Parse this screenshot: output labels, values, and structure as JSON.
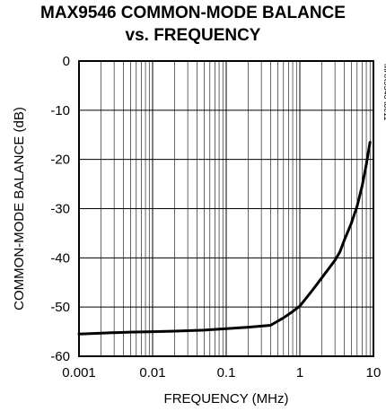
{
  "chart_data": {
    "type": "line",
    "title_lines": [
      "MAX9546 COMMON-MODE BALANCE",
      "vs. FREQUENCY"
    ],
    "xlabel": "FREQUENCY (MHz)",
    "ylabel": "COMMON-MODE BALANCE (dB)",
    "x_scale": "log",
    "xlim": [
      0.001,
      10
    ],
    "ylim": [
      -60,
      0
    ],
    "x_ticks": [
      0.001,
      0.01,
      0.1,
      1,
      10
    ],
    "x_tick_labels": [
      "0.001",
      "0.01",
      "0.1",
      "1",
      "10"
    ],
    "y_ticks": [
      0,
      -10,
      -20,
      -30,
      -40,
      -50,
      -60
    ],
    "y_tick_labels": [
      "0",
      "-10",
      "-20",
      "-30",
      "-40",
      "-50",
      "-60"
    ],
    "grid": true,
    "watermark": "MAX9546 toc11",
    "series": [
      {
        "x": [
          0.001,
          0.002,
          0.005,
          0.01,
          0.02,
          0.05,
          0.1,
          0.2,
          0.4,
          0.6,
          0.8,
          1.0,
          1.5,
          2.0,
          3.0,
          3.5,
          4.0,
          5.0,
          6.0,
          7.0,
          8.0,
          9.0
        ],
        "y": [
          -55.5,
          -55.3,
          -55.1,
          -55.0,
          -54.9,
          -54.7,
          -54.4,
          -54.1,
          -53.7,
          -52.2,
          -50.9,
          -49.8,
          -46.5,
          -44.0,
          -40.5,
          -38.8,
          -36.5,
          -33.0,
          -29.5,
          -25.5,
          -21.0,
          -16.5
        ]
      }
    ]
  }
}
